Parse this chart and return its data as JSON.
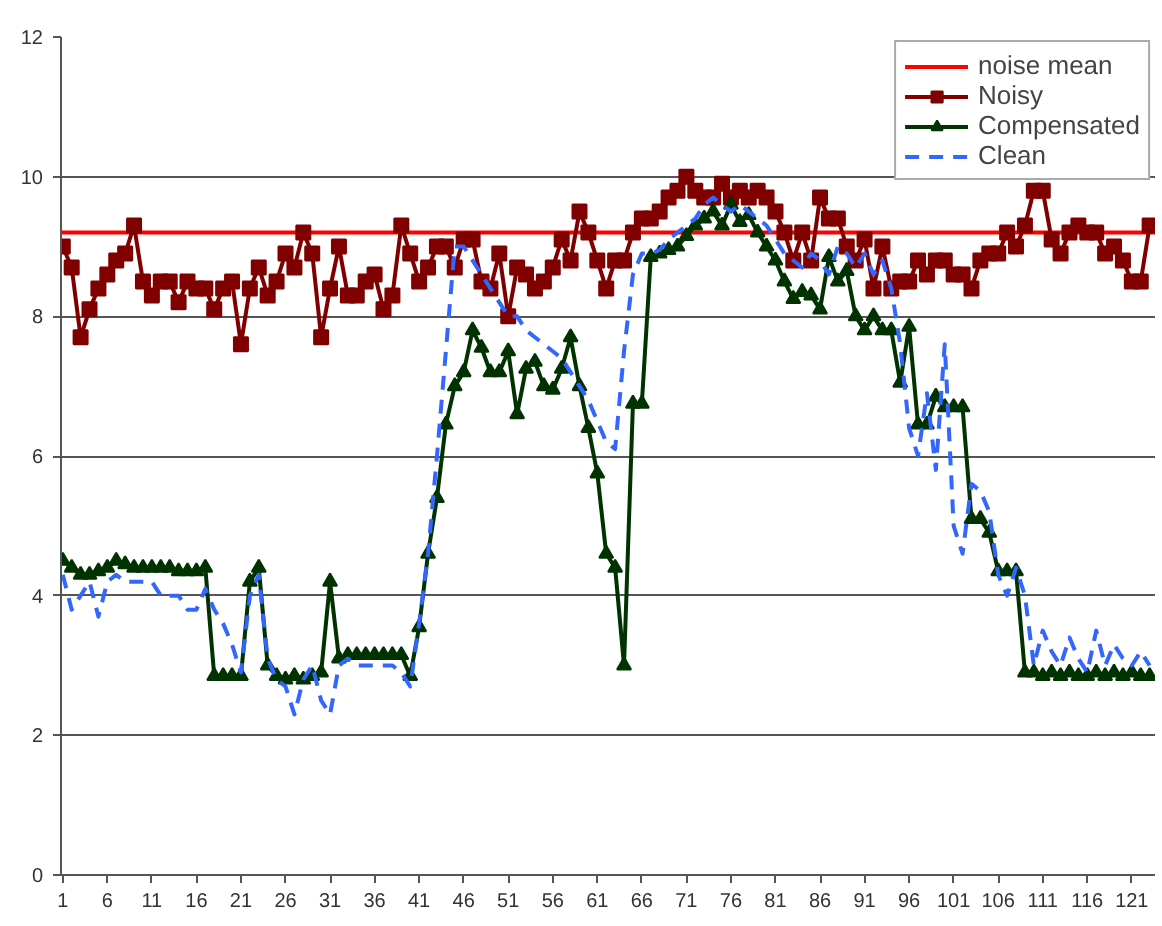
{
  "chart_data": {
    "type": "line",
    "x": [
      1,
      2,
      3,
      4,
      5,
      6,
      7,
      8,
      9,
      10,
      11,
      12,
      13,
      14,
      15,
      16,
      17,
      18,
      19,
      20,
      21,
      22,
      23,
      24,
      25,
      26,
      27,
      28,
      29,
      30,
      31,
      32,
      33,
      34,
      35,
      36,
      37,
      38,
      39,
      40,
      41,
      42,
      43,
      44,
      45,
      46,
      47,
      48,
      49,
      50,
      51,
      52,
      53,
      54,
      55,
      56,
      57,
      58,
      59,
      60,
      61,
      62,
      63,
      64,
      65,
      66,
      67,
      68,
      69,
      70,
      71,
      72,
      73,
      74,
      75,
      76,
      77,
      78,
      79,
      80,
      81,
      82,
      83,
      84,
      85,
      86,
      87,
      88,
      89,
      90,
      91,
      92,
      93,
      94,
      95,
      96,
      97,
      98,
      99,
      100,
      101,
      102,
      103,
      104,
      105,
      106,
      107,
      108,
      109,
      110,
      111,
      112,
      113,
      114,
      115,
      116,
      117,
      118,
      119,
      120,
      121,
      122,
      123
    ],
    "xlim": [
      0.8,
      123.6
    ],
    "xticks": [
      1,
      6,
      11,
      16,
      21,
      26,
      31,
      36,
      41,
      46,
      51,
      56,
      61,
      66,
      71,
      76,
      81,
      86,
      91,
      96,
      101,
      106,
      111,
      116,
      121
    ],
    "ylim": [
      0,
      12
    ],
    "yticks": [
      0,
      2,
      4,
      6,
      8,
      10,
      12
    ],
    "grid": "y",
    "legend": "top right",
    "ref_lines": [
      {
        "axis": "y",
        "value": 9.2,
        "label": "noise mean",
        "color": "#ff0000"
      }
    ],
    "series": [
      {
        "name": "Noisy",
        "color": "#800000",
        "marker": "square",
        "line_style": "solid",
        "values": [
          9.0,
          8.7,
          7.7,
          8.1,
          8.4,
          8.6,
          8.8,
          8.9,
          9.3,
          8.5,
          8.3,
          8.5,
          8.5,
          8.2,
          8.5,
          8.4,
          8.4,
          8.1,
          8.4,
          8.5,
          7.6,
          8.4,
          8.7,
          8.3,
          8.5,
          8.9,
          8.7,
          9.2,
          8.9,
          7.7,
          8.4,
          9.0,
          8.3,
          8.3,
          8.5,
          8.6,
          8.1,
          8.3,
          9.3,
          8.9,
          8.5,
          8.7,
          9.0,
          9.0,
          8.7,
          9.1,
          9.1,
          8.5,
          8.4,
          8.9,
          8.0,
          8.7,
          8.6,
          8.4,
          8.5,
          8.7,
          9.1,
          8.8,
          9.5,
          9.2,
          8.8,
          8.4,
          8.8,
          8.8,
          9.2,
          9.4,
          9.4,
          9.5,
          9.7,
          9.8,
          10.0,
          9.8,
          9.7,
          9.7,
          9.9,
          9.7,
          9.8,
          9.7,
          9.8,
          9.7,
          9.5,
          9.2,
          8.8,
          9.2,
          8.8,
          9.7,
          9.4,
          9.4,
          9.0,
          8.8,
          9.1,
          8.4,
          9.0,
          8.4,
          8.5,
          8.5,
          8.8,
          8.6,
          8.8,
          8.8,
          8.6,
          8.6,
          8.4,
          8.8,
          8.9,
          8.9,
          9.2,
          9.0,
          9.3,
          9.8,
          9.8,
          9.1,
          8.9,
          9.2,
          9.3,
          9.2,
          9.2,
          8.9,
          9.0,
          8.8,
          8.5,
          8.5,
          9.3
        ]
      },
      {
        "name": "Compensated",
        "color": "#003300",
        "marker": "triangle",
        "line_style": "solid",
        "values": [
          4.5,
          4.4,
          4.3,
          4.3,
          4.35,
          4.4,
          4.5,
          4.45,
          4.4,
          4.4,
          4.4,
          4.4,
          4.4,
          4.35,
          4.35,
          4.35,
          4.4,
          2.85,
          2.85,
          2.85,
          2.85,
          4.2,
          4.4,
          3.0,
          2.85,
          2.8,
          2.85,
          2.8,
          2.85,
          2.9,
          4.2,
          3.1,
          3.15,
          3.15,
          3.15,
          3.15,
          3.15,
          3.15,
          3.15,
          2.85,
          3.55,
          4.6,
          5.4,
          6.45,
          7.0,
          7.2,
          7.8,
          7.55,
          7.2,
          7.2,
          7.5,
          6.6,
          7.25,
          7.35,
          7.0,
          6.95,
          7.25,
          7.7,
          7.0,
          6.4,
          5.75,
          4.6,
          4.4,
          3.0,
          6.75,
          6.75,
          8.85,
          8.9,
          8.95,
          9.0,
          9.15,
          9.3,
          9.4,
          9.5,
          9.3,
          9.6,
          9.35,
          9.45,
          9.2,
          9.0,
          8.8,
          8.5,
          8.25,
          8.35,
          8.3,
          8.1,
          8.85,
          8.5,
          8.65,
          8.0,
          7.8,
          8.0,
          7.8,
          7.8,
          7.05,
          7.85,
          6.45,
          6.45,
          6.85,
          6.7,
          6.7,
          6.7,
          5.1,
          5.1,
          4.9,
          4.35,
          4.35,
          4.35,
          2.9,
          2.9,
          2.85,
          2.9,
          2.85,
          2.9,
          2.85,
          2.85,
          2.9,
          2.85,
          2.9,
          2.85,
          2.9,
          2.85,
          2.85
        ]
      },
      {
        "name": "Clean",
        "color": "#3366ff",
        "marker": "none",
        "line_style": "dashed",
        "values": [
          4.3,
          3.8,
          4.0,
          4.2,
          3.7,
          4.2,
          4.3,
          4.2,
          4.2,
          4.2,
          4.2,
          4.0,
          4.0,
          4.0,
          3.8,
          3.8,
          4.1,
          3.8,
          3.6,
          3.3,
          2.9,
          4.0,
          4.3,
          3.1,
          2.8,
          2.7,
          2.3,
          2.8,
          3.0,
          2.5,
          2.3,
          3.0,
          3.1,
          3.0,
          3.0,
          3.0,
          3.0,
          3.0,
          2.9,
          2.7,
          3.6,
          4.6,
          6.0,
          7.5,
          9.0,
          9.0,
          8.8,
          8.6,
          8.4,
          8.2,
          8.0,
          8.0,
          7.8,
          7.7,
          7.6,
          7.5,
          7.4,
          7.2,
          7.0,
          6.8,
          6.5,
          6.2,
          6.1,
          7.5,
          8.6,
          8.9,
          8.9,
          8.95,
          9.1,
          9.2,
          9.3,
          9.4,
          9.6,
          9.7,
          9.6,
          9.5,
          9.6,
          9.5,
          9.4,
          9.3,
          9.1,
          8.9,
          8.8,
          8.7,
          8.9,
          8.8,
          8.6,
          9.0,
          8.9,
          8.7,
          8.9,
          8.6,
          8.8,
          8.4,
          7.6,
          6.4,
          6.0,
          6.9,
          5.8,
          7.6,
          5.0,
          4.6,
          5.6,
          5.5,
          5.2,
          4.3,
          4.0,
          4.4,
          4.0,
          3.0,
          3.5,
          3.2,
          3.0,
          3.4,
          3.1,
          2.9,
          3.5,
          3.0,
          3.3,
          3.1,
          3.0,
          3.2,
          3.0
        ]
      }
    ]
  }
}
